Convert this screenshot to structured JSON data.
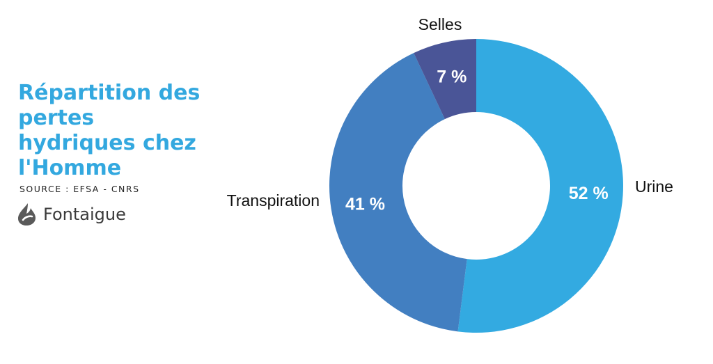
{
  "header": {
    "title": "Répartition des pertes hydriques chez l'Homme",
    "source": "SOURCE : EFSA - CNRS"
  },
  "brand": {
    "name": "Fontaigue",
    "logo_icon": "drop-flame-icon",
    "logo_color": "#5a5a5a"
  },
  "colors": {
    "title": "#33a8df"
  },
  "chart_data": {
    "type": "pie",
    "variant": "donut",
    "title": "",
    "categories": [
      "Urine",
      "Transpiration",
      "Selles"
    ],
    "values": [
      52,
      41,
      7
    ],
    "value_labels": [
      "52 %",
      "41 %",
      "7 %"
    ],
    "colors": [
      "#33aae1",
      "#427fc1",
      "#4a5597"
    ],
    "start": "top",
    "direction": "clockwise",
    "legend": "none"
  }
}
